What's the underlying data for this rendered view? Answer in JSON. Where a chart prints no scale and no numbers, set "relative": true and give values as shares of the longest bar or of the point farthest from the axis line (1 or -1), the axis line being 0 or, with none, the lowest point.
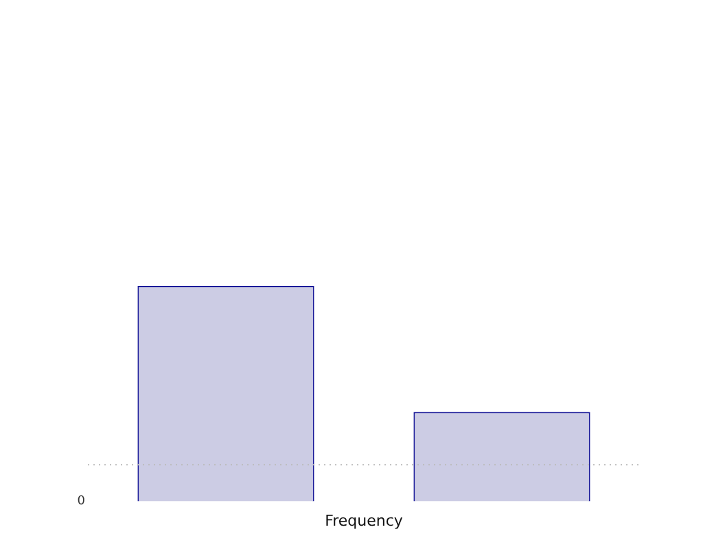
{
  "chart_data": {
    "type": "bar",
    "relative": true,
    "categories": [
      null,
      null
    ],
    "values": [
      1,
      0.415
    ],
    "color": "#ccccE4",
    "xlabel": "Frequency",
    "annotations": [
      "0"
    ],
    "ref_lines": [
      {
        "axis": "y",
        "value": 0.17,
        "color": "#bbbbbb",
        "line_style": "dotted"
      }
    ],
    "legend": false
  }
}
